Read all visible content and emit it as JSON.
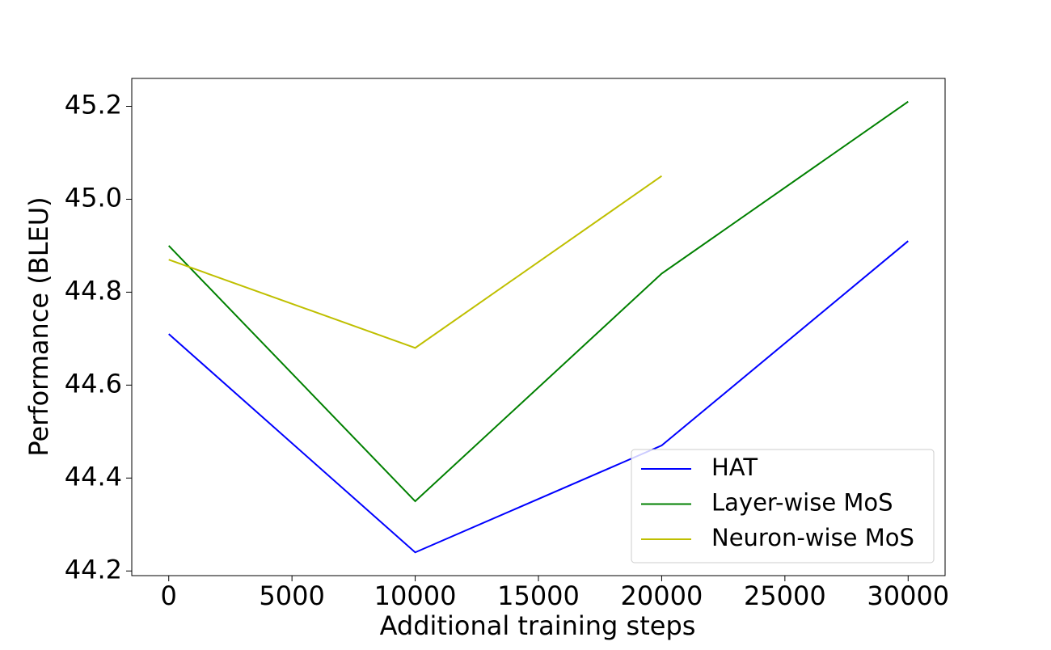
{
  "chart_data": {
    "type": "line",
    "xlabel": "Additional training steps",
    "ylabel": "Performance (BLEU)",
    "x": [
      0,
      10000,
      20000,
      30000
    ],
    "series": [
      {
        "name": "HAT",
        "color": "#0000ff",
        "values": [
          44.71,
          44.24,
          44.47,
          44.91
        ]
      },
      {
        "name": "Layer-wise MoS",
        "color": "#008000",
        "values": [
          44.9,
          44.35,
          44.84,
          45.21
        ]
      },
      {
        "name": "Neuron-wise MoS",
        "color": "#bfbf00",
        "values": [
          44.87,
          44.68,
          45.05,
          null
        ]
      }
    ],
    "xlim": [
      -1500,
      31500
    ],
    "ylim": [
      44.19,
      45.26
    ],
    "xticks": [
      0,
      5000,
      10000,
      15000,
      20000,
      25000,
      30000
    ],
    "yticks": [
      44.2,
      44.4,
      44.6,
      44.8,
      {
        "value": 45,
        "label": "45.0"
      },
      45.2
    ],
    "grid": false,
    "legend": "lower right"
  }
}
